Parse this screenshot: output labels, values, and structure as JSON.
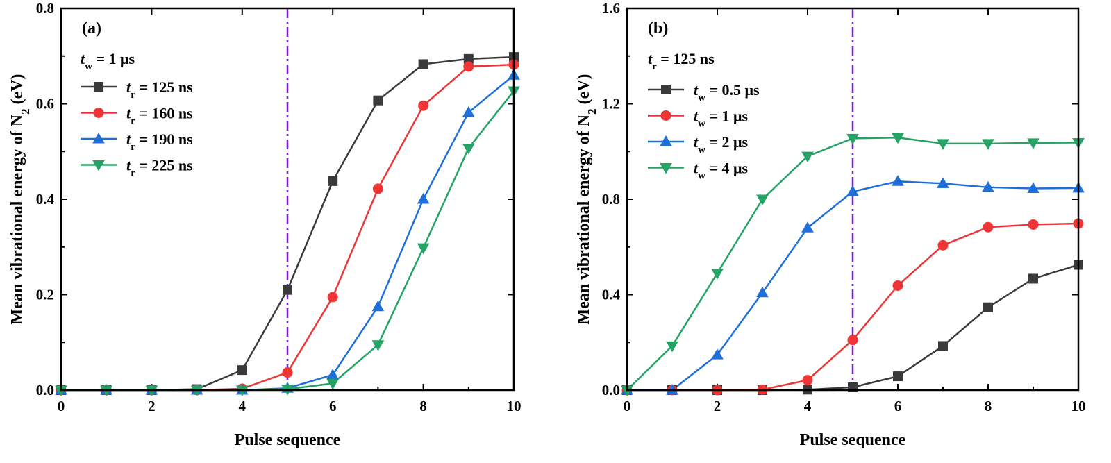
{
  "chart_data": [
    {
      "panel": "(a)",
      "type": "line",
      "xlabel": "Pulse sequence",
      "ylabel": {
        "main": "Mean vibrational energy of N",
        "sub": "2",
        "suffix": " (eV)"
      },
      "xlim": [
        0,
        10
      ],
      "ylim": [
        0,
        0.8
      ],
      "xticks": [
        "0",
        "2",
        "4",
        "6",
        "8",
        "10"
      ],
      "yticks": [
        "0.0",
        "0.2",
        "0.4",
        "0.6",
        "0.8"
      ],
      "vline_x": 5,
      "vline_color": "#7a1fd6",
      "legend": {
        "header": {
          "var": "t",
          "sub": "w",
          "rest": " = 1 μs"
        },
        "var": "t",
        "sub": "r"
      },
      "x": [
        0,
        1,
        2,
        3,
        4,
        5,
        6,
        7,
        8,
        9,
        10
      ],
      "series": [
        {
          "name": " = 125 ns",
          "color": "#3a3a3a",
          "marker": "square",
          "values": [
            0,
            0,
            0,
            0.002,
            0.042,
            0.21,
            0.438,
            0.607,
            0.683,
            0.694,
            0.698
          ]
        },
        {
          "name": " = 160 ns",
          "color": "#ee3535",
          "marker": "circle",
          "values": [
            0,
            0,
            0,
            0,
            0.003,
            0.037,
            0.195,
            0.422,
            0.596,
            0.678,
            0.682
          ]
        },
        {
          "name": " = 190 ns",
          "color": "#1e6fd9",
          "marker": "triangle-up",
          "values": [
            0,
            0,
            0,
            0,
            0,
            0.004,
            0.032,
            0.175,
            0.4,
            0.582,
            0.66
          ]
        },
        {
          "name": " = 225 ns",
          "color": "#25a265",
          "marker": "triangle-down",
          "values": [
            0,
            0,
            0,
            0,
            0,
            0.002,
            0.014,
            0.095,
            0.298,
            0.507,
            0.627
          ]
        }
      ]
    },
    {
      "panel": "(b)",
      "type": "line",
      "xlabel": "Pulse sequence",
      "ylabel": {
        "main": "Mean vibrational energy of N",
        "sub": "2",
        "suffix": " (eV)"
      },
      "xlim": [
        0,
        10
      ],
      "ylim": [
        0,
        1.6
      ],
      "xticks": [
        "0",
        "2",
        "4",
        "6",
        "8",
        "10"
      ],
      "yticks": [
        "0.0",
        "0.4",
        "0.8",
        "1.2",
        "1.6"
      ],
      "vline_x": 5,
      "vline_color": "#7a1fd6",
      "legend": {
        "header": {
          "var": "t",
          "sub": "r",
          "rest": " = 125 ns"
        },
        "var": "t",
        "sub": "w"
      },
      "x": [
        0,
        1,
        2,
        3,
        4,
        5,
        6,
        7,
        8,
        9,
        10
      ],
      "series": [
        {
          "name": " = 0.5 μs",
          "color": "#3a3a3a",
          "marker": "square",
          "values": [
            0,
            0,
            0,
            0,
            0.002,
            0.012,
            0.058,
            0.185,
            0.347,
            0.467,
            0.525
          ]
        },
        {
          "name": " = 1 μs",
          "color": "#ee3535",
          "marker": "circle",
          "values": [
            0,
            0,
            0,
            0.002,
            0.042,
            0.21,
            0.438,
            0.607,
            0.683,
            0.694,
            0.698
          ]
        },
        {
          "name": " = 2 μs",
          "color": "#1e6fd9",
          "marker": "triangle-up",
          "values": [
            0,
            0,
            0.148,
            0.408,
            0.68,
            0.832,
            0.875,
            0.866,
            0.85,
            0.845,
            0.847
          ]
        },
        {
          "name": " = 4 μs",
          "color": "#25a265",
          "marker": "triangle-down",
          "values": [
            0,
            0.185,
            0.49,
            0.8,
            0.98,
            1.055,
            1.058,
            1.033,
            1.033,
            1.036,
            1.037
          ]
        }
      ]
    }
  ]
}
